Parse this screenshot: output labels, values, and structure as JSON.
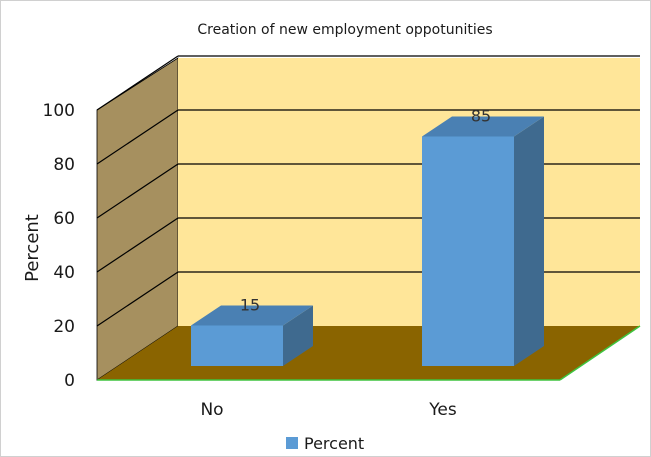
{
  "chart_data": {
    "type": "bar",
    "style": "3d",
    "title": "Creation of new employment oppotunities",
    "xlabel": "",
    "ylabel": "Percent",
    "categories": [
      "No",
      "Yes"
    ],
    "series": [
      {
        "name": "Percent",
        "values": [
          15,
          85
        ],
        "color": "#5b9bd5"
      }
    ],
    "data_labels": [
      "15",
      "85"
    ],
    "yticks": [
      "0",
      "20",
      "40",
      "60",
      "80",
      "100"
    ],
    "ylim": [
      0,
      100
    ],
    "grid": true,
    "legend": "bottom",
    "colors": {
      "back_wall": "#ffe699",
      "side_wall": "#a6905f",
      "floor": "#8a6400",
      "bar_front": "#5b9bd5",
      "bar_side": "#3f6a8f",
      "bar_top": "#4a80b3",
      "grid": "#000000",
      "floor_edge": "#3ec43e"
    }
  }
}
